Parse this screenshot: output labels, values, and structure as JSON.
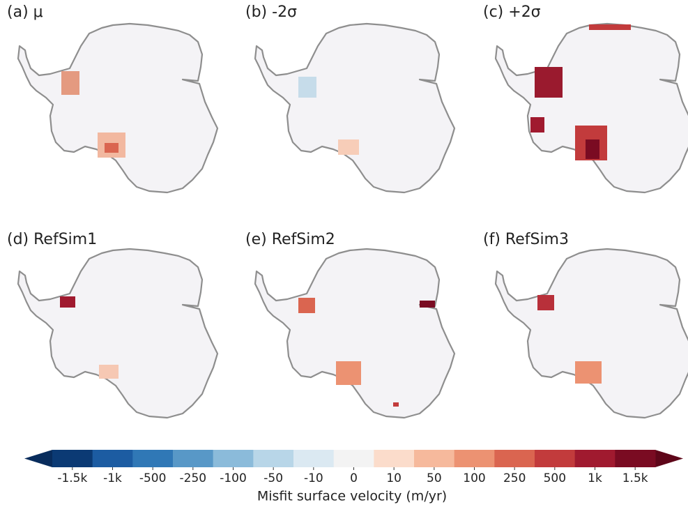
{
  "panels": [
    {
      "title": "(a) μ"
    },
    {
      "title": "(b) -2σ"
    },
    {
      "title": "(c) +2σ"
    },
    {
      "title": "(d) RefSim1"
    },
    {
      "title": "(e) RefSim2"
    },
    {
      "title": "(f) RefSim3"
    }
  ],
  "colorbar": {
    "label": "Misfit surface velocity (m/yr)",
    "ticks": [
      "-1.5k",
      "-1k",
      "-500",
      "-250",
      "-100",
      "-50",
      "-10",
      "0",
      "10",
      "50",
      "100",
      "250",
      "500",
      "1k",
      "1.5k"
    ],
    "colors": [
      "#0b3a74",
      "#1c5ca2",
      "#3078b6",
      "#5898c7",
      "#8bbbda",
      "#b8d6e8",
      "#dbe9f2",
      "#f3f3f3",
      "#fbdccb",
      "#f6b99c",
      "#ec9272",
      "#da6550",
      "#c23b3c",
      "#a01a2f",
      "#7a0b22"
    ],
    "under_color": "#082c5c",
    "over_color": "#5e0619"
  }
}
